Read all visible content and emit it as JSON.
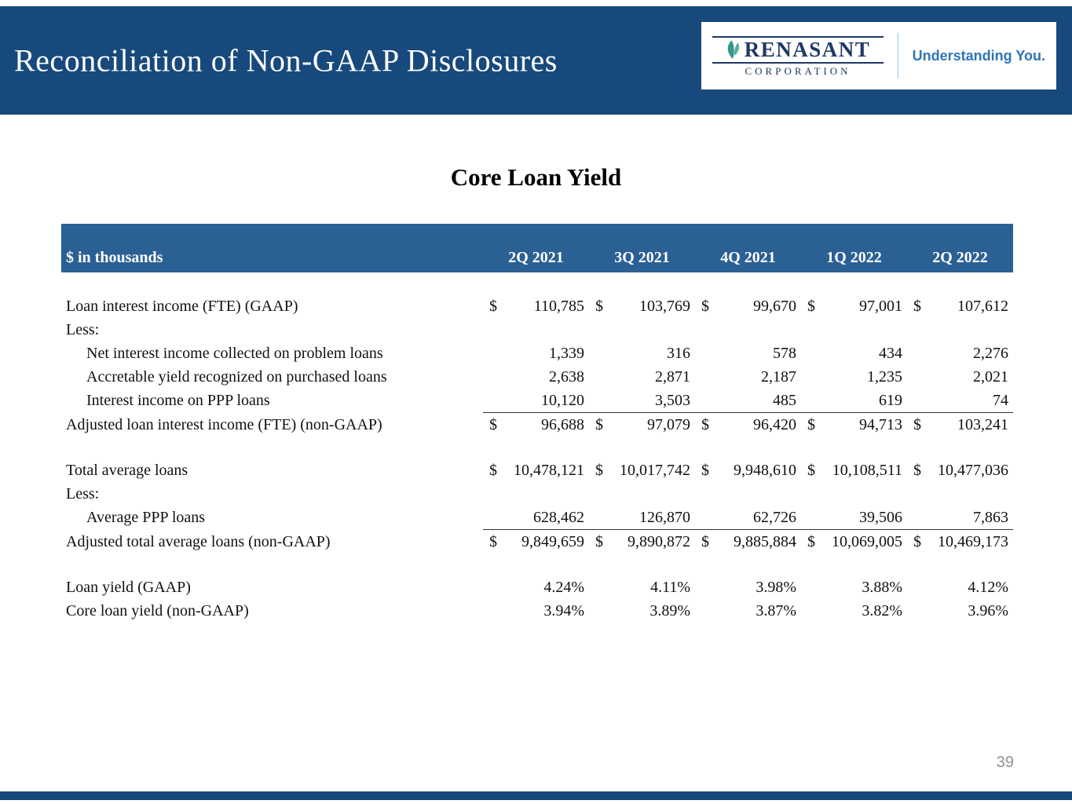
{
  "header": {
    "title": "Reconciliation of Non-GAAP Disclosures",
    "logo_name": "RENASANT",
    "logo_sub": "CORPORATION",
    "tagline": "Understanding You."
  },
  "slide": {
    "title": "Core Loan Yield",
    "page_number": "39"
  },
  "colors": {
    "header_bar": "#17497C",
    "table_header": "#2B6094",
    "tagline_blue": "#2E75B6",
    "logo_navy": "#1F3864",
    "leaf_green": "#34978B",
    "page_number_gray": "#8C9196"
  },
  "chart_data": {
    "type": "table",
    "title": "Core Loan Yield",
    "unit_label": "$ in thousands",
    "columns": [
      "2Q 2021",
      "3Q 2021",
      "4Q 2021",
      "1Q 2022",
      "2Q 2022"
    ],
    "rows": [
      {
        "spacer": true
      },
      {
        "label": "Loan interest income (FTE) (GAAP)",
        "indent": 0,
        "dollar": true,
        "values": [
          "110,785",
          "103,769",
          "99,670",
          "97,001",
          "107,612"
        ]
      },
      {
        "label": "Less:",
        "indent": 0,
        "values": null
      },
      {
        "label": "Net interest income collected on problem loans",
        "indent": 1,
        "values": [
          "1,339",
          "316",
          "578",
          "434",
          "2,276"
        ]
      },
      {
        "label": "Accretable yield recognized on purchased loans",
        "indent": 1,
        "values": [
          "2,638",
          "2,871",
          "2,187",
          "1,235",
          "2,021"
        ]
      },
      {
        "label": "Interest income on PPP loans",
        "indent": 1,
        "underline": true,
        "values": [
          "10,120",
          "3,503",
          "485",
          "619",
          "74"
        ]
      },
      {
        "label": "Adjusted loan interest income (FTE) (non-GAAP)",
        "indent": 0,
        "dollar": true,
        "values": [
          "96,688",
          "97,079",
          "96,420",
          "94,713",
          "103,241"
        ]
      },
      {
        "spacer": true
      },
      {
        "label": "Total average loans",
        "indent": 0,
        "dollar": true,
        "values": [
          "10,478,121",
          "10,017,742",
          "9,948,610",
          "10,108,511",
          "10,477,036"
        ]
      },
      {
        "label": "Less:",
        "indent": 0,
        "values": null
      },
      {
        "label": "Average PPP loans",
        "indent": 1,
        "underline": true,
        "values": [
          "628,462",
          "126,870",
          "62,726",
          "39,506",
          "7,863"
        ]
      },
      {
        "label": "Adjusted total average loans (non-GAAP)",
        "indent": 0,
        "dollar": true,
        "values": [
          "9,849,659",
          "9,890,872",
          "9,885,884",
          "10,069,005",
          "10,469,173"
        ]
      },
      {
        "spacer": true
      },
      {
        "label": "Loan yield (GAAP)",
        "indent": 0,
        "values": [
          "4.24%",
          "4.11%",
          "3.98%",
          "3.88%",
          "4.12%"
        ]
      },
      {
        "label": "Core loan yield (non-GAAP)",
        "indent": 0,
        "values": [
          "3.94%",
          "3.89%",
          "3.87%",
          "3.82%",
          "3.96%"
        ]
      }
    ]
  }
}
